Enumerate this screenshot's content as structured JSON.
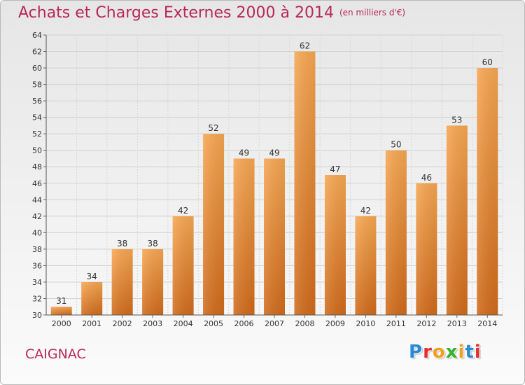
{
  "title": "Achats et Charges Externes 2000 à 2014",
  "subtitle": "(en milliers d'€)",
  "place": "CAIGNAC",
  "logo": {
    "text": "Proxiti",
    "colors": [
      "#2a8ad8",
      "#e03030",
      "#f0a020",
      "#38b030",
      "#f0a020",
      "#2a8ad8",
      "#e03030"
    ]
  },
  "colors": {
    "title": "#b8275a",
    "bar_top": "#f6a752",
    "bar_bottom": "#d06a1a"
  },
  "chart_data": {
    "type": "bar",
    "categories": [
      "2000",
      "2001",
      "2002",
      "2003",
      "2004",
      "2005",
      "2006",
      "2007",
      "2008",
      "2009",
      "2010",
      "2011",
      "2012",
      "2013",
      "2014"
    ],
    "values": [
      31,
      34,
      38,
      38,
      42,
      52,
      49,
      49,
      62,
      47,
      42,
      50,
      46,
      53,
      60
    ],
    "ylim": [
      30,
      64
    ],
    "yticks": [
      30,
      32,
      34,
      36,
      38,
      40,
      42,
      44,
      46,
      48,
      50,
      52,
      54,
      56,
      58,
      60,
      62,
      64
    ],
    "grid": true,
    "xlabel": "",
    "ylabel": ""
  }
}
